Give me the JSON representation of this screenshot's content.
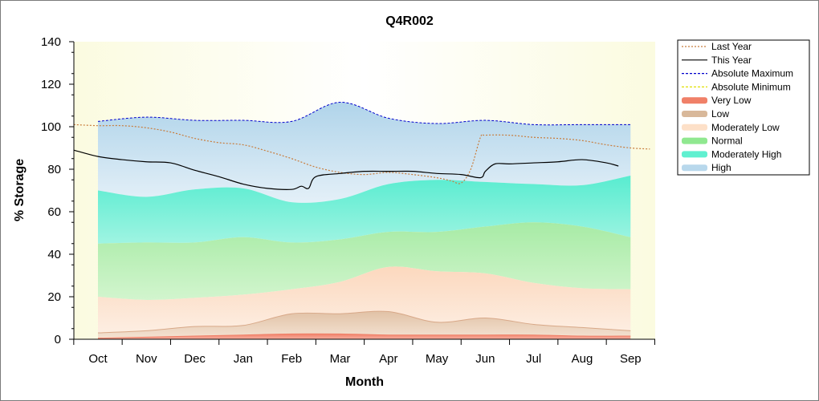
{
  "chart_data": {
    "type": "area",
    "title": "Q4R002",
    "xlabel": "Month",
    "ylabel": "% Storage",
    "ylim": [
      0,
      140
    ],
    "yticks": [
      0,
      20,
      40,
      60,
      80,
      100,
      120,
      140
    ],
    "months": [
      "Oct",
      "Nov",
      "Dec",
      "Jan",
      "Feb",
      "Mar",
      "Apr",
      "May",
      "Jun",
      "Jul",
      "Aug",
      "Sep"
    ],
    "grid": false,
    "legend_position": "right",
    "legend": [
      {
        "label": "Last Year",
        "kind": "line",
        "color": "#c87c3c",
        "dash": "2,2"
      },
      {
        "label": "This Year",
        "kind": "line",
        "color": "#000000",
        "dash": ""
      },
      {
        "label": "Absolute Maximum",
        "kind": "line",
        "color": "#0000cc",
        "dash": "3,2"
      },
      {
        "label": "Absolute Minimum",
        "kind": "line",
        "color": "#e0e000",
        "dash": "3,2"
      },
      {
        "label": "Very Low",
        "kind": "band",
        "color": "#f08068"
      },
      {
        "label": "Low",
        "kind": "band",
        "color": "#d8b89a"
      },
      {
        "label": "Moderately Low",
        "kind": "band",
        "color": "#fde0c8"
      },
      {
        "label": "Normal",
        "kind": "band",
        "color": "#90e890"
      },
      {
        "label": "Moderately High",
        "kind": "band",
        "color": "#60f0d0"
      },
      {
        "label": "High",
        "kind": "band",
        "color": "#b8d8ec"
      }
    ],
    "band_x": [
      0,
      1,
      2,
      3,
      4,
      5,
      6,
      7,
      8,
      9,
      10,
      11
    ],
    "bands": {
      "absolute_minimum": [
        0.5,
        1,
        1.5,
        2,
        2.5,
        2.5,
        2,
        2,
        2,
        2,
        1.5,
        1.5
      ],
      "very_low": [
        3,
        4,
        6,
        6.5,
        12,
        12,
        13,
        8,
        10,
        7,
        5.5,
        4
      ],
      "low": [
        20,
        18.5,
        19.5,
        21,
        23.5,
        27,
        34,
        32,
        31,
        26.5,
        24,
        23.5
      ],
      "moderately_low": [
        45,
        45.5,
        45.5,
        48,
        45.5,
        47,
        50.5,
        50.5,
        53,
        55,
        53,
        48
      ],
      "normal": [
        70,
        67,
        70.5,
        71,
        64.5,
        66,
        73,
        75,
        74,
        73,
        72.5,
        77
      ],
      "moderately_high": [
        102.5,
        104.5,
        103,
        103,
        102.5,
        111.5,
        104,
        101.5,
        103,
        101,
        101,
        101
      ],
      "high": [
        102.5,
        104.5,
        103,
        103,
        102.5,
        111.5,
        104,
        101.5,
        103,
        101,
        101,
        101
      ]
    },
    "series": [
      {
        "name": "Last Year",
        "x": [
          -0.5,
          0,
          0.5,
          1,
          1.5,
          2,
          2.5,
          3,
          3.5,
          4,
          4.5,
          5,
          5.5,
          6,
          6.5,
          7,
          7.3,
          7.5,
          7.7,
          7.9,
          8,
          8.5,
          9,
          9.5,
          10,
          10.5,
          11,
          11.4
        ],
        "y": [
          101,
          100.5,
          100.5,
          99.5,
          97.5,
          94.5,
          92.5,
          91.5,
          88.5,
          85,
          81,
          78.5,
          77.5,
          78.5,
          77.5,
          76,
          74.5,
          73.5,
          80,
          95,
          96,
          96,
          95,
          94.5,
          93.5,
          91.5,
          90,
          89.5
        ]
      },
      {
        "name": "This Year",
        "x": [
          -0.5,
          0,
          0.5,
          1,
          1.5,
          2,
          2.5,
          3,
          3.5,
          4,
          4.2,
          4.35,
          4.5,
          5,
          5.5,
          6,
          6.5,
          7,
          7.5,
          7.9,
          8,
          8.2,
          8.5,
          9,
          9.5,
          10,
          10.5,
          10.75
        ],
        "y": [
          89,
          86,
          84.5,
          83.5,
          83,
          79.5,
          76.5,
          73,
          71,
          70.5,
          72,
          71,
          76.5,
          78,
          79,
          79,
          79,
          78,
          77.5,
          76,
          79,
          82.5,
          82.5,
          83,
          83.5,
          84.5,
          83,
          81.5
        ]
      }
    ]
  }
}
